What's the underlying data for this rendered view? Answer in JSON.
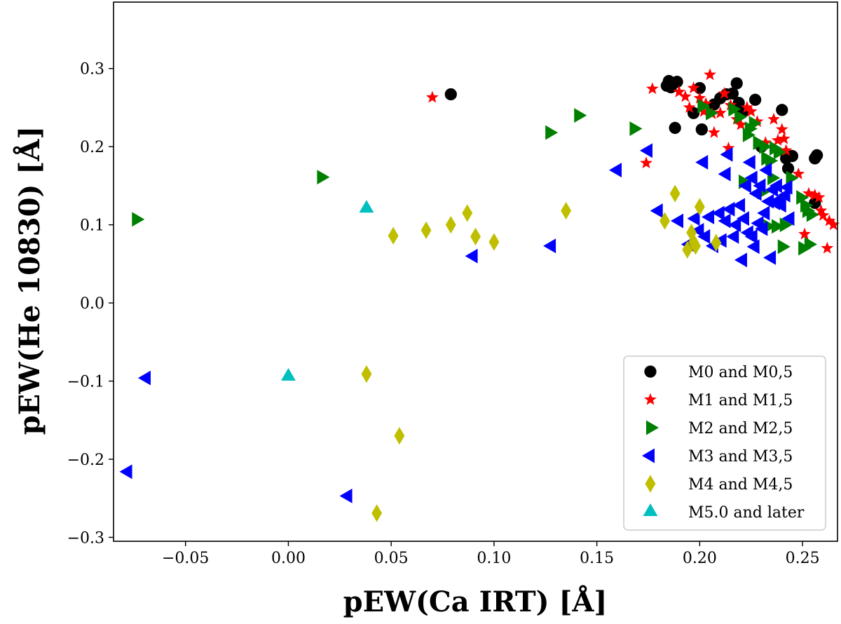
{
  "chart_data": {
    "type": "scatter",
    "title": "",
    "xlabel": "pEW(Ca IRT) [Å]",
    "ylabel": "pEW(He 10830) [Å]",
    "xlim": [
      -0.085,
      0.267
    ],
    "ylim": [
      -0.305,
      0.385
    ],
    "xticks": [
      -0.05,
      0.0,
      0.05,
      0.1,
      0.15,
      0.2,
      0.25
    ],
    "xtick_labels": [
      "−0.05",
      "0.00",
      "0.05",
      "0.10",
      "0.15",
      "0.20",
      "0.25"
    ],
    "yticks": [
      -0.3,
      -0.2,
      -0.1,
      0.0,
      0.1,
      0.2,
      0.3
    ],
    "ytick_labels": [
      "−0.3",
      "−0.2",
      "−0.1",
      "0.0",
      "0.1",
      "0.2",
      "0.3"
    ],
    "grid": false,
    "legend_position": "lower-right",
    "series": [
      {
        "name": "M0 and M0,5",
        "marker": "circle",
        "color": "#000000",
        "points": [
          [
            0.079,
            0.267
          ],
          [
            0.184,
            0.278
          ],
          [
            0.185,
            0.284
          ],
          [
            0.189,
            0.283
          ],
          [
            0.186,
            0.276
          ],
          [
            0.188,
            0.224
          ],
          [
            0.197,
            0.243
          ],
          [
            0.2,
            0.275
          ],
          [
            0.201,
            0.222
          ],
          [
            0.207,
            0.254
          ],
          [
            0.21,
            0.262
          ],
          [
            0.213,
            0.267
          ],
          [
            0.216,
            0.268
          ],
          [
            0.218,
            0.281
          ],
          [
            0.219,
            0.256
          ],
          [
            0.221,
            0.245
          ],
          [
            0.227,
            0.26
          ],
          [
            0.23,
            0.2
          ],
          [
            0.24,
            0.247
          ],
          [
            0.242,
            0.185
          ],
          [
            0.243,
            0.172
          ],
          [
            0.245,
            0.188
          ],
          [
            0.256,
            0.185
          ],
          [
            0.257,
            0.189
          ],
          [
            0.256,
            0.128
          ]
        ]
      },
      {
        "name": "M1 and M1,5",
        "marker": "star",
        "color": "#ff0000",
        "points": [
          [
            0.07,
            0.263
          ],
          [
            0.174,
            0.179
          ],
          [
            0.177,
            0.274
          ],
          [
            0.19,
            0.27
          ],
          [
            0.193,
            0.264
          ],
          [
            0.195,
            0.25
          ],
          [
            0.197,
            0.275
          ],
          [
            0.2,
            0.262
          ],
          [
            0.202,
            0.245
          ],
          [
            0.203,
            0.255
          ],
          [
            0.205,
            0.292
          ],
          [
            0.206,
            0.242
          ],
          [
            0.207,
            0.218
          ],
          [
            0.21,
            0.243
          ],
          [
            0.212,
            0.268
          ],
          [
            0.214,
            0.198
          ],
          [
            0.215,
            0.253
          ],
          [
            0.218,
            0.235
          ],
          [
            0.22,
            0.228
          ],
          [
            0.223,
            0.25
          ],
          [
            0.225,
            0.245
          ],
          [
            0.228,
            0.232
          ],
          [
            0.232,
            0.205
          ],
          [
            0.236,
            0.235
          ],
          [
            0.238,
            0.208
          ],
          [
            0.24,
            0.222
          ],
          [
            0.241,
            0.21
          ],
          [
            0.242,
            0.195
          ],
          [
            0.248,
            0.165
          ],
          [
            0.251,
            0.088
          ],
          [
            0.253,
            0.14
          ],
          [
            0.256,
            0.138
          ],
          [
            0.258,
            0.135
          ],
          [
            0.259,
            0.118
          ],
          [
            0.26,
            0.112
          ],
          [
            0.262,
            0.07
          ],
          [
            0.263,
            0.105
          ],
          [
            0.265,
            0.1
          ]
        ]
      },
      {
        "name": "M2 and M2,5",
        "marker": "triangle-right",
        "color": "#008000",
        "points": [
          [
            -0.074,
            0.107
          ],
          [
            0.016,
            0.161
          ],
          [
            0.127,
            0.218
          ],
          [
            0.141,
            0.24
          ],
          [
            0.168,
            0.223
          ],
          [
            0.201,
            0.252
          ],
          [
            0.205,
            0.243
          ],
          [
            0.216,
            0.248
          ],
          [
            0.219,
            0.238
          ],
          [
            0.221,
            0.155
          ],
          [
            0.223,
            0.215
          ],
          [
            0.224,
            0.223
          ],
          [
            0.226,
            0.23
          ],
          [
            0.228,
            0.205
          ],
          [
            0.23,
            0.142
          ],
          [
            0.231,
            0.2
          ],
          [
            0.232,
            0.185
          ],
          [
            0.234,
            0.182
          ],
          [
            0.235,
            0.16
          ],
          [
            0.236,
            0.198
          ],
          [
            0.238,
            0.193
          ],
          [
            0.233,
            0.098
          ],
          [
            0.237,
            0.098
          ],
          [
            0.24,
            0.072
          ],
          [
            0.241,
            0.1
          ],
          [
            0.244,
            0.16
          ],
          [
            0.249,
            0.135
          ],
          [
            0.251,
            0.125
          ],
          [
            0.252,
            0.118
          ],
          [
            0.254,
            0.113
          ],
          [
            0.25,
            0.07
          ],
          [
            0.253,
            0.075
          ]
        ]
      },
      {
        "name": "M3 and M3,5",
        "marker": "triangle-left",
        "color": "#0000ff",
        "points": [
          [
            -0.069,
            -0.096
          ],
          [
            -0.078,
            -0.216
          ],
          [
            0.029,
            -0.247
          ],
          [
            0.09,
            0.06
          ],
          [
            0.128,
            0.073
          ],
          [
            0.16,
            0.17
          ],
          [
            0.175,
            0.195
          ],
          [
            0.18,
            0.118
          ],
          [
            0.19,
            0.105
          ],
          [
            0.195,
            0.075
          ],
          [
            0.198,
            0.108
          ],
          [
            0.2,
            0.093
          ],
          [
            0.202,
            0.18
          ],
          [
            0.203,
            0.085
          ],
          [
            0.205,
            0.11
          ],
          [
            0.207,
            0.073
          ],
          [
            0.21,
            0.115
          ],
          [
            0.211,
            0.08
          ],
          [
            0.213,
            0.165
          ],
          [
            0.213,
            0.105
          ],
          [
            0.215,
            0.12
          ],
          [
            0.214,
            0.19
          ],
          [
            0.217,
            0.085
          ],
          [
            0.218,
            0.1
          ],
          [
            0.22,
            0.125
          ],
          [
            0.221,
            0.055
          ],
          [
            0.222,
            0.108
          ],
          [
            0.223,
            0.15
          ],
          [
            0.224,
            0.09
          ],
          [
            0.225,
            0.18
          ],
          [
            0.226,
            0.16
          ],
          [
            0.226,
            0.085
          ],
          [
            0.227,
            0.072
          ],
          [
            0.228,
            0.14
          ],
          [
            0.229,
            0.102
          ],
          [
            0.23,
            0.15
          ],
          [
            0.231,
            0.095
          ],
          [
            0.232,
            0.115
          ],
          [
            0.233,
            0.17
          ],
          [
            0.234,
            0.13
          ],
          [
            0.235,
            0.058
          ],
          [
            0.236,
            0.145
          ],
          [
            0.237,
            0.128
          ],
          [
            0.238,
            0.15
          ],
          [
            0.239,
            0.132
          ],
          [
            0.24,
            0.125
          ],
          [
            0.242,
            0.138
          ],
          [
            0.243,
            0.148
          ],
          [
            0.244,
            0.108
          ]
        ]
      },
      {
        "name": "M4 and M4,5",
        "marker": "diamond",
        "color": "#bfbf00",
        "points": [
          [
            0.038,
            -0.091
          ],
          [
            0.054,
            -0.17
          ],
          [
            0.043,
            -0.269
          ],
          [
            0.051,
            0.086
          ],
          [
            0.067,
            0.093
          ],
          [
            0.079,
            0.1
          ],
          [
            0.087,
            0.115
          ],
          [
            0.091,
            0.085
          ],
          [
            0.1,
            0.078
          ],
          [
            0.135,
            0.118
          ],
          [
            0.183,
            0.105
          ],
          [
            0.188,
            0.14
          ],
          [
            0.194,
            0.068
          ],
          [
            0.196,
            0.09
          ],
          [
            0.197,
            0.078
          ],
          [
            0.198,
            0.073
          ],
          [
            0.2,
            0.123
          ],
          [
            0.208,
            0.077
          ]
        ]
      },
      {
        "name": "M5.0 and later",
        "marker": "triangle-up",
        "color": "#00bfbf",
        "points": [
          [
            0.038,
            0.121
          ],
          [
            0.0,
            -0.094
          ]
        ]
      }
    ]
  }
}
